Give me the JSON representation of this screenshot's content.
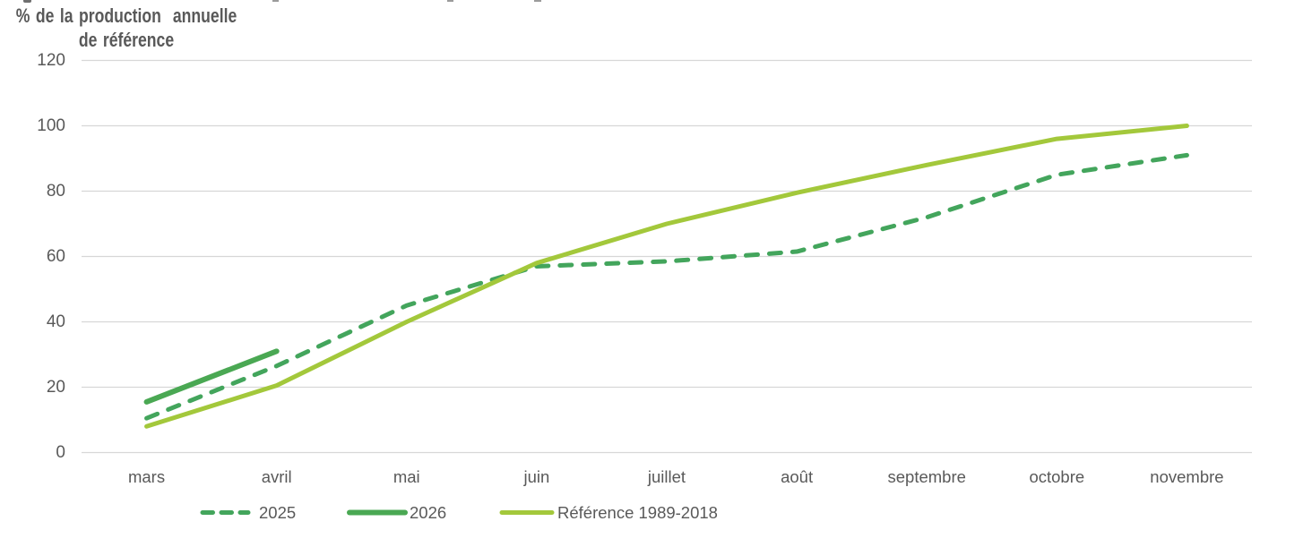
{
  "page": {
    "background_color": "#ffffff",
    "description": "Line chart of cumulative production as percentage of annual reference production, by month, top of chart title cropped off"
  },
  "chart_data": {
    "type": "line",
    "title": "",
    "ylabel_lines": [
      "% de la production  annuelle",
      "de référence"
    ],
    "xlabel": "",
    "categories": [
      "mars",
      "avril",
      "mai",
      "juin",
      "juillet",
      "août",
      "septembre",
      "octobre",
      "novembre"
    ],
    "series": [
      {
        "name": "2025",
        "values": [
          10.5,
          26.5,
          45,
          57,
          58.5,
          61.5,
          72,
          85,
          91
        ],
        "color": "#43a55c",
        "line_style": "dashed",
        "stroke_width": 5
      },
      {
        "name": "2026",
        "values": [
          15.5,
          31,
          null,
          null,
          null,
          null,
          null,
          null,
          null
        ],
        "color": "#4aa853",
        "line_style": "solid",
        "stroke_width": 6
      },
      {
        "name": "Référence 1989-2018",
        "values": [
          8,
          20.5,
          40,
          58,
          70,
          79.5,
          88,
          96,
          100
        ],
        "color": "#a3c83b",
        "line_style": "solid",
        "stroke_width": 5
      }
    ],
    "ylim": [
      0,
      120
    ],
    "yticks": [
      0,
      20,
      40,
      60,
      80,
      100,
      120
    ],
    "grid": "horizontal",
    "gridline_color": "#d7d7d7",
    "text_color": "#595959",
    "legend_position": "bottom"
  }
}
